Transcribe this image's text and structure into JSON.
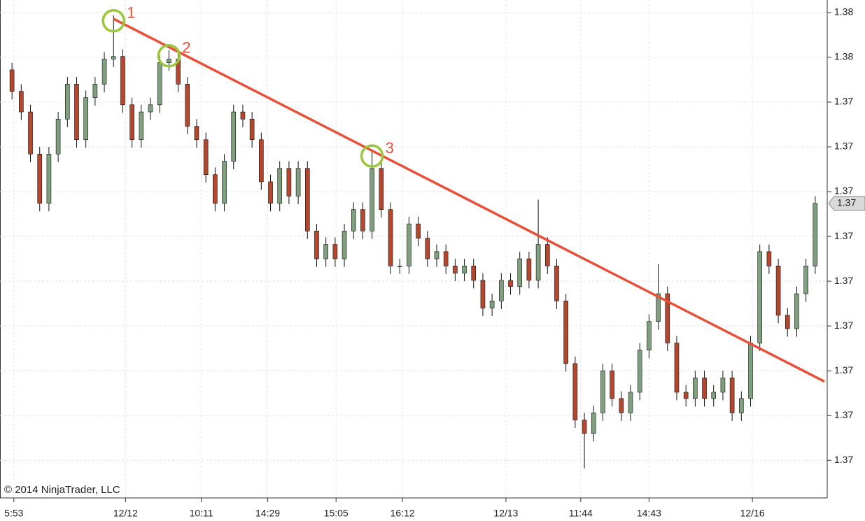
{
  "chart_data": {
    "type": "candlestick",
    "open": [
      1.37486,
      1.37462,
      1.37439,
      1.37392,
      1.37337,
      1.37392,
      1.37431,
      1.3747,
      1.37408,
      1.37455,
      1.3747,
      1.37498,
      1.37501,
      1.37447,
      1.37408,
      1.37439,
      1.37447,
      1.37494,
      1.37498,
      1.3747,
      1.37423,
      1.37408,
      1.37369,
      1.37337,
      1.37384,
      1.37439,
      1.37431,
      1.37408,
      1.37361,
      1.37337,
      1.37376,
      1.37345,
      1.37376,
      1.37306,
      1.37275,
      1.37291,
      1.37275,
      1.37306,
      1.3733,
      1.37306,
      1.37376,
      1.3733,
      1.37267,
      1.37267,
      1.37314,
      1.37298,
      1.37275,
      1.37283,
      1.37267,
      1.37259,
      1.37267,
      1.37251,
      1.3722,
      1.37228,
      1.37251,
      1.37244,
      1.37275,
      1.37251,
      1.37291,
      1.37267,
      1.37228,
      1.37158,
      1.37095,
      1.3708,
      1.37103,
      1.3715,
      1.37119,
      1.37103,
      1.37126,
      1.37173,
      1.37205,
      1.37236,
      1.37181,
      1.37126,
      1.37119,
      1.37142,
      1.37119,
      1.37126,
      1.37142,
      1.37103,
      1.37119,
      1.37181,
      1.37283,
      1.37267,
      1.37212,
      1.37197,
      1.37236,
      1.37267
    ],
    "high": [
      1.37494,
      1.3747,
      1.37447,
      1.374,
      1.374,
      1.37439,
      1.37478,
      1.37478,
      1.37463,
      1.37478,
      1.37506,
      1.37547,
      1.37509,
      1.37455,
      1.37447,
      1.37455,
      1.37502,
      1.37508,
      1.37506,
      1.37478,
      1.37431,
      1.37416,
      1.37377,
      1.37392,
      1.37447,
      1.37447,
      1.37439,
      1.37416,
      1.37369,
      1.37384,
      1.37384,
      1.37384,
      1.37384,
      1.37314,
      1.37299,
      1.37299,
      1.37314,
      1.37338,
      1.37338,
      1.37396,
      1.37384,
      1.37338,
      1.37275,
      1.37322,
      1.37322,
      1.37306,
      1.37291,
      1.37291,
      1.37275,
      1.37275,
      1.37275,
      1.37259,
      1.37236,
      1.37259,
      1.37259,
      1.37283,
      1.37283,
      1.37341,
      1.37299,
      1.37275,
      1.37236,
      1.37166,
      1.37103,
      1.37111,
      1.37158,
      1.37158,
      1.37127,
      1.37134,
      1.37181,
      1.37213,
      1.37269,
      1.37244,
      1.37189,
      1.37134,
      1.3715,
      1.3715,
      1.37134,
      1.3715,
      1.3715,
      1.37127,
      1.37189,
      1.37291,
      1.37291,
      1.37275,
      1.3722,
      1.37244,
      1.37275,
      1.37345
    ],
    "low": [
      1.37453,
      1.3743,
      1.37383,
      1.37328,
      1.37328,
      1.37383,
      1.37422,
      1.37399,
      1.37399,
      1.37446,
      1.37461,
      1.37489,
      1.37438,
      1.37399,
      1.37399,
      1.3743,
      1.37438,
      1.37485,
      1.37461,
      1.37414,
      1.37399,
      1.3736,
      1.37328,
      1.37328,
      1.37375,
      1.37422,
      1.37399,
      1.37352,
      1.37328,
      1.37328,
      1.37336,
      1.37336,
      1.37297,
      1.37266,
      1.37266,
      1.37266,
      1.37266,
      1.37297,
      1.37297,
      1.37297,
      1.37321,
      1.37258,
      1.37258,
      1.37258,
      1.37289,
      1.37266,
      1.37266,
      1.37258,
      1.3725,
      1.3725,
      1.37242,
      1.37211,
      1.37211,
      1.37219,
      1.37235,
      1.37235,
      1.37242,
      1.37242,
      1.37258,
      1.37219,
      1.37149,
      1.37086,
      1.37041,
      1.37071,
      1.37094,
      1.3711,
      1.37094,
      1.37094,
      1.37117,
      1.37164,
      1.37196,
      1.37172,
      1.37117,
      1.3711,
      1.3711,
      1.3711,
      1.3711,
      1.37117,
      1.37094,
      1.37094,
      1.3711,
      1.37172,
      1.37258,
      1.37203,
      1.37188,
      1.37188,
      1.37227,
      1.37258
    ],
    "close": [
      1.37462,
      1.37439,
      1.37392,
      1.37337,
      1.37392,
      1.37431,
      1.3747,
      1.37408,
      1.37455,
      1.3747,
      1.37498,
      1.37501,
      1.37447,
      1.37408,
      1.37439,
      1.37447,
      1.37494,
      1.37498,
      1.3747,
      1.37423,
      1.37408,
      1.37369,
      1.37337,
      1.37384,
      1.37439,
      1.37431,
      1.37408,
      1.37361,
      1.37337,
      1.37376,
      1.37345,
      1.37376,
      1.37306,
      1.37275,
      1.37291,
      1.37275,
      1.37306,
      1.3733,
      1.37306,
      1.37376,
      1.3733,
      1.37267,
      1.37267,
      1.37314,
      1.37298,
      1.37275,
      1.37283,
      1.37267,
      1.37259,
      1.37267,
      1.37251,
      1.3722,
      1.37228,
      1.37251,
      1.37244,
      1.37275,
      1.37251,
      1.37291,
      1.37267,
      1.37228,
      1.37158,
      1.37095,
      1.3708,
      1.37103,
      1.3715,
      1.37119,
      1.37103,
      1.37126,
      1.37173,
      1.37205,
      1.37236,
      1.37181,
      1.37126,
      1.37119,
      1.37142,
      1.37119,
      1.37126,
      1.37142,
      1.37103,
      1.37119,
      1.37181,
      1.37283,
      1.37267,
      1.37212,
      1.37197,
      1.37236,
      1.37267,
      1.37337
    ],
    "up_color": "#7f9f7f",
    "down_color": "#b4472d",
    "wick_color": "#111111",
    "xlim": [
      -1.3,
      88.3
    ],
    "xticks": [
      {
        "value": 0.2,
        "label": "5:53"
      },
      {
        "value": 12.3,
        "label": "12/12"
      },
      {
        "value": 20.5,
        "label": "10:11"
      },
      {
        "value": 27.7,
        "label": "14:29"
      },
      {
        "value": 35.1,
        "label": "15:05"
      },
      {
        "value": 42.3,
        "label": "16:12"
      },
      {
        "value": 53.5,
        "label": "12/13"
      },
      {
        "value": 61.6,
        "label": "11:44"
      },
      {
        "value": 69,
        "label": "14:43"
      },
      {
        "value": 80.2,
        "label": "12/16"
      }
    ],
    "ylim": [
      1.37008,
      1.37564
    ],
    "yticks": [
      {
        "value": 1.3755,
        "label": "1.38"
      },
      {
        "value": 1.375,
        "label": "1.38"
      },
      {
        "value": 1.3745,
        "label": "1.37"
      },
      {
        "value": 1.374,
        "label": "1.37"
      },
      {
        "value": 1.3735,
        "label": "1.37"
      },
      {
        "value": 1.373,
        "label": "1.37"
      },
      {
        "value": 1.3725,
        "label": "1.37"
      },
      {
        "value": 1.372,
        "label": "1.37"
      },
      {
        "value": 1.3715,
        "label": "1.37"
      },
      {
        "value": 1.371,
        "label": "1.37"
      },
      {
        "value": 1.3705,
        "label": "1.37"
      }
    ],
    "grid": true,
    "last_price": {
      "value": 1.37337,
      "label": "1.37"
    },
    "trendline": {
      "x": [
        11,
        88
      ],
      "y": [
        1.37543,
        1.37138
      ],
      "color": "#e8503a"
    },
    "touches": [
      {
        "text": "1",
        "x": 11
      },
      {
        "text": "2",
        "x": 17
      },
      {
        "text": "3",
        "x": 39
      }
    ],
    "touch_color": "#9ac73c",
    "copyright": "© 2014 NinjaTrader, LLC"
  }
}
